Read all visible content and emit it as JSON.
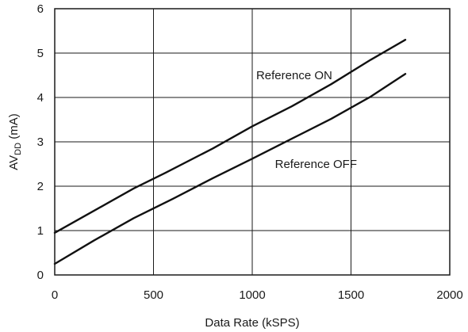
{
  "chart_data": {
    "type": "line",
    "title": "",
    "xlabel": "Data Rate (kSPS)",
    "ylabel": {
      "main": "AV",
      "subscript": "DD",
      "suffix": " (mA)"
    },
    "xlim": [
      0,
      2000
    ],
    "ylim": [
      0,
      6
    ],
    "xticks": [
      "0",
      "500",
      "1000",
      "1500",
      "2000"
    ],
    "yticks": [
      "0",
      "1",
      "2",
      "3",
      "4",
      "5",
      "6"
    ],
    "grid": true,
    "series": [
      {
        "name": "Reference ON",
        "x": [
          0,
          200,
          400,
          560,
          800,
          1000,
          1200,
          1400,
          1600,
          1775
        ],
        "y": [
          0.95,
          1.45,
          1.95,
          2.3,
          2.85,
          3.35,
          3.8,
          4.3,
          4.85,
          5.3
        ]
      },
      {
        "name": "Reference OFF",
        "x": [
          0,
          200,
          400,
          600,
          800,
          1000,
          1200,
          1400,
          1600,
          1775
        ],
        "y": [
          0.25,
          0.78,
          1.28,
          1.72,
          2.18,
          2.62,
          3.07,
          3.52,
          4.02,
          4.53
        ]
      }
    ],
    "series_label_anchor": [
      {
        "x": 1020,
        "y": 4.5
      },
      {
        "x": 1115,
        "y": 2.5
      }
    ],
    "colors": {
      "line": "#111111",
      "grid": "#1a1a1a",
      "text": "#1a1a1a"
    }
  }
}
